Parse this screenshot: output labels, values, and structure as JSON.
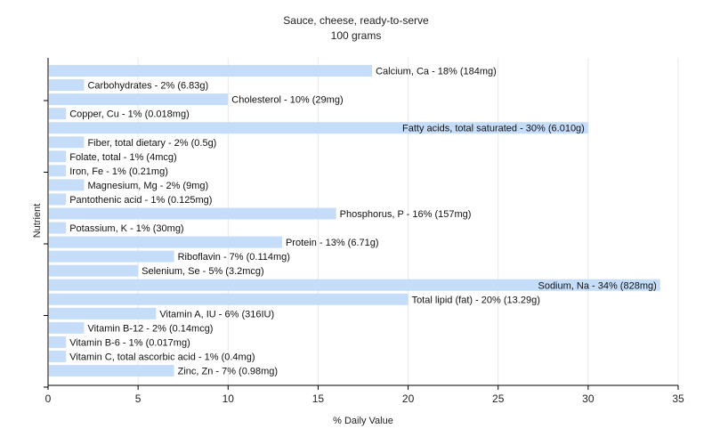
{
  "chart_data": {
    "type": "bar",
    "orientation": "horizontal",
    "title": "Sauce, cheese, ready-to-serve",
    "subtitle": "100 grams",
    "xlabel": "% Daily Value",
    "ylabel": "Nutrient",
    "xlim": [
      0,
      35
    ],
    "xticks": [
      0,
      5,
      10,
      15,
      20,
      25,
      30,
      35
    ],
    "grid": "vertical",
    "bar_color": "#c6ddfa",
    "grid_color": "#e8e8e8",
    "categories": [
      "Calcium, Ca - 18% (184mg)",
      "Carbohydrates - 2% (6.83g)",
      "Cholesterol - 10% (29mg)",
      "Copper, Cu - 1% (0.018mg)",
      "Fatty acids, total saturated - 30% (6.010g)",
      "Fiber, total dietary - 2% (0.5g)",
      "Folate, total - 1% (4mcg)",
      "Iron, Fe - 1% (0.21mg)",
      "Magnesium, Mg - 2% (9mg)",
      "Pantothenic acid - 1% (0.125mg)",
      "Phosphorus, P - 16% (157mg)",
      "Potassium, K - 1% (30mg)",
      "Protein - 13% (6.71g)",
      "Riboflavin - 7% (0.114mg)",
      "Selenium, Se - 5% (3.2mcg)",
      "Sodium, Na - 34% (828mg)",
      "Total lipid (fat) - 20% (13.29g)",
      "Vitamin A, IU - 6% (316IU)",
      "Vitamin B-12 - 2% (0.14mcg)",
      "Vitamin B-6 - 1% (0.017mg)",
      "Vitamin C, total ascorbic acid - 1% (0.4mg)",
      "Zinc, Zn - 7% (0.98mg)"
    ],
    "values": [
      18,
      2,
      10,
      1,
      30,
      2,
      1,
      1,
      2,
      1,
      16,
      1,
      13,
      7,
      5,
      34,
      20,
      6,
      2,
      1,
      1,
      7
    ]
  }
}
